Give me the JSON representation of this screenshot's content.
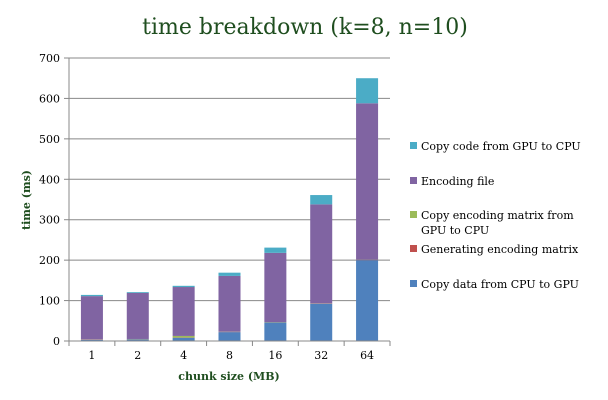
{
  "chart_data": {
    "type": "bar",
    "stacked": true,
    "title": "time breakdown (k=8, n=10)",
    "xlabel": "chunk size (MB)",
    "ylabel": "time (ms)",
    "ylim": [
      0,
      700
    ],
    "yticks": [
      0,
      100,
      200,
      300,
      400,
      500,
      600,
      700
    ],
    "grid": true,
    "legend_position": "right",
    "categories": [
      "1",
      "2",
      "4",
      "8",
      "16",
      "32",
      "64"
    ],
    "series": [
      {
        "name": "Copy data from CPU to GPU",
        "color": "#4f81bd",
        "values": [
          3,
          4,
          8,
          22,
          46,
          92,
          200
        ]
      },
      {
        "name": "Generating encoding matrix",
        "color": "#c0504d",
        "values": [
          0.5,
          0.5,
          0.5,
          0.5,
          0.5,
          0.5,
          0.5
        ]
      },
      {
        "name": "Copy encoding matrix from GPU to CPU",
        "color": "#9bbb59",
        "values": [
          0.5,
          0.5,
          4,
          0.5,
          0.5,
          0.5,
          0.5
        ]
      },
      {
        "name": "Encoding file",
        "color": "#8064a2",
        "values": [
          107,
          114,
          121,
          138,
          171,
          245,
          387
        ]
      },
      {
        "name": "Copy code from GPU to CPU",
        "color": "#4bacc6",
        "values": [
          3,
          2,
          3,
          8,
          13,
          23,
          62
        ]
      }
    ],
    "legend_order": [
      "Copy code from GPU to CPU",
      "Encoding file",
      "Copy encoding matrix from GPU to CPU",
      "Generating encoding matrix",
      "Copy data from CPU to GPU"
    ]
  }
}
